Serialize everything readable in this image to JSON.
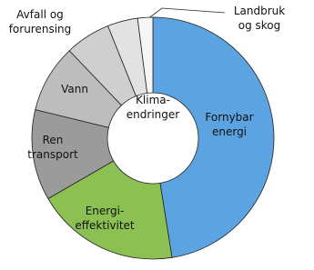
{
  "chart_data": {
    "type": "donut",
    "title": "Klima-\nendringer",
    "categories": [
      "Fornybar\nenergi",
      "Energi-\neffektivitet",
      "Ren\ntransport",
      "Vann",
      "Avfall og\nforurensing",
      null,
      "Landbruk\nog skog"
    ],
    "values": [
      47,
      19,
      12,
      9,
      6,
      4,
      2
    ],
    "colors": [
      "#5ca3e1",
      "#8cc052",
      "#9b9b9b",
      "#bdbdbd",
      "#cfcfcf",
      "#e2e2e2",
      "#f6f6f6"
    ]
  }
}
